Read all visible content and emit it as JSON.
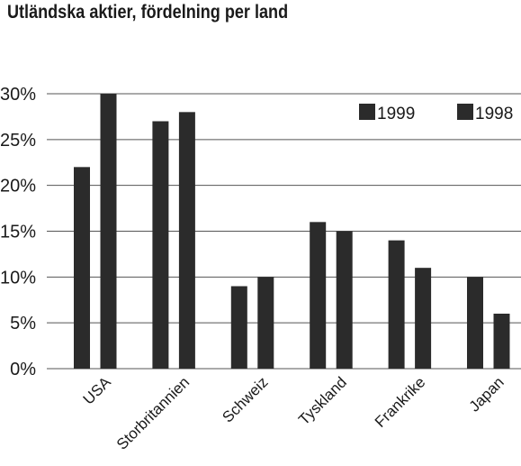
{
  "chart_data": {
    "type": "bar",
    "title": "Utländska aktier, fördelning per land",
    "categories": [
      "USA",
      "Storbritannien",
      "Schweiz",
      "Tyskland",
      "Frankrike",
      "Japan"
    ],
    "series": [
      {
        "name": "1999",
        "values": [
          22,
          27,
          9,
          16,
          14,
          10
        ]
      },
      {
        "name": "1998",
        "values": [
          30,
          28,
          10,
          15,
          11,
          6
        ]
      }
    ],
    "ylim": [
      0,
      30
    ],
    "yticks": [
      "0%",
      "5%",
      "10%",
      "15%",
      "20%",
      "25%",
      "30%"
    ],
    "xlabel": "",
    "ylabel": "",
    "grid": true,
    "legend_position": "top-right",
    "bar_color": "#2b2b2b"
  }
}
